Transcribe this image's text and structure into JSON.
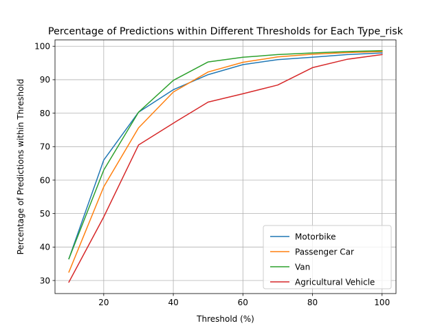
{
  "chart_data": {
    "type": "line",
    "title": "Percentage of Predictions within Different Thresholds for Each Type_risk",
    "xlabel": "Threshold (%)",
    "ylabel": "Percentage of Predictions within Threshold",
    "xlim": [
      6,
      104
    ],
    "ylim": [
      26.1,
      101.9
    ],
    "xticks": [
      20,
      40,
      60,
      80,
      100
    ],
    "yticks": [
      30,
      40,
      50,
      60,
      70,
      80,
      90,
      100
    ],
    "grid": true,
    "legend_position": "lower right",
    "x": [
      10,
      20,
      30,
      40,
      50,
      60,
      70,
      80,
      90,
      100
    ],
    "series": [
      {
        "name": "Motorbike",
        "color": "#1f77b4",
        "values": [
          36.5,
          66.0,
          80.3,
          87.0,
          91.5,
          94.5,
          96.0,
          96.7,
          97.5,
          98.0
        ]
      },
      {
        "name": "Passenger Car",
        "color": "#ff7f0e",
        "values": [
          32.5,
          58.0,
          75.6,
          86.3,
          92.3,
          95.2,
          96.8,
          97.6,
          98.1,
          98.4
        ]
      },
      {
        "name": "Van",
        "color": "#2ca02c",
        "values": [
          36.5,
          63.0,
          80.3,
          89.8,
          95.3,
          96.7,
          97.5,
          98.0,
          98.4,
          98.7
        ]
      },
      {
        "name": "Agricultural Vehicle",
        "color": "#d62728",
        "values": [
          29.5,
          49.0,
          70.5,
          77.0,
          83.3,
          85.8,
          88.4,
          93.6,
          96.1,
          97.5
        ]
      }
    ]
  }
}
